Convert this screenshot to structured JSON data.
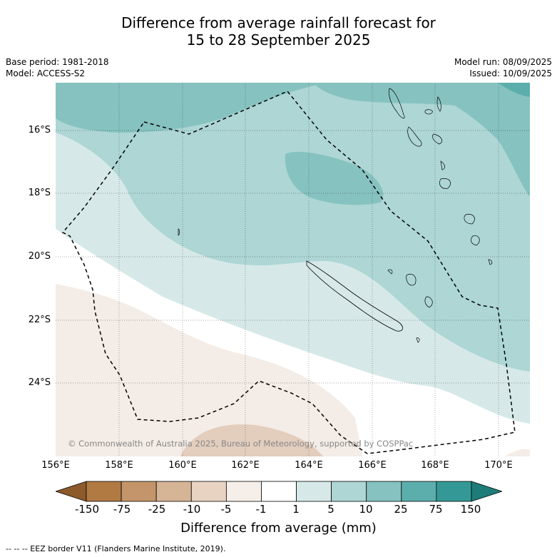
{
  "title_line1": "Difference from average rainfall forecast for",
  "title_line2": "15 to 28 September 2025",
  "base_period": "Base period: 1981-2018",
  "model": "Model: ACCESS-S2",
  "model_run": "Model run: 08/09/2025",
  "issued": "Issued: 10/09/2025",
  "copyright": "© Commonwealth of Australia 2025, Bureau of Meteorology, supported by COSPPac",
  "lat_labels": [
    "16°S",
    "18°S",
    "20°S",
    "22°S",
    "24°S"
  ],
  "lon_labels": [
    "156°E",
    "158°E",
    "160°E",
    "162°E",
    "164°E",
    "166°E",
    "168°E",
    "170°E"
  ],
  "colorbar": {
    "title": "Difference from average (mm)",
    "ticks": [
      "-150",
      "-75",
      "-25",
      "-10",
      "-5",
      "-1",
      "1",
      "5",
      "10",
      "25",
      "75",
      "150"
    ],
    "colors": [
      "#8c5a2b",
      "#b07a42",
      "#c4956a",
      "#d6b496",
      "#e8d3c3",
      "#f6eee8",
      "#ffffff",
      "#d6e9e8",
      "#add6d5",
      "#86c2c0",
      "#5baeac",
      "#349996",
      "#1e7c79"
    ]
  },
  "legend_footer": "-- -- -- EEZ border V11 (Flanders Marine Institute, 2019)."
}
